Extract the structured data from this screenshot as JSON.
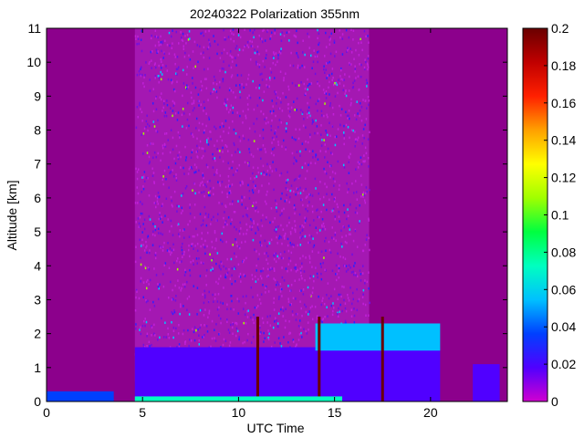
{
  "chart_data": {
    "type": "heatmap",
    "title": "20240322 Polarization 355nm",
    "xlabel": "UTC Time",
    "ylabel": "Altitude [km]",
    "xlim": [
      0,
      24
    ],
    "ylim": [
      0,
      11
    ],
    "x_ticks": [
      0,
      5,
      10,
      15,
      20
    ],
    "y_ticks": [
      0,
      1,
      2,
      3,
      4,
      5,
      6,
      7,
      8,
      9,
      10,
      11
    ],
    "colorbar": {
      "range": [
        0,
        0.2
      ],
      "ticks": [
        0,
        0.02,
        0.04,
        0.06,
        0.08,
        0.1,
        0.12,
        0.14,
        0.16,
        0.18,
        0.2
      ],
      "colormap": [
        "#d000d0",
        "#5000ff",
        "#0040ff",
        "#00c0ff",
        "#00ffc0",
        "#00ff40",
        "#a0ff00",
        "#ffff00",
        "#ffa000",
        "#ff2000",
        "#c00000",
        "#6a0000"
      ],
      "position": "right"
    },
    "background_color": "#8c008c",
    "grid": false,
    "features": [
      {
        "name": "noisy high-altitude signal",
        "x_range": [
          4.6,
          16.8
        ],
        "alt_range": [
          0.6,
          11
        ],
        "value": 0.02
      },
      {
        "name": "aerosol layer",
        "x_range": [
          4.6,
          20.5
        ],
        "alt_range": [
          0,
          1.6
        ],
        "value": 0.01
      },
      {
        "name": "layer top",
        "x_range": [
          14,
          20.5
        ],
        "alt_range": [
          1.5,
          2.3
        ],
        "value": 0.06
      },
      {
        "name": "depolarizing columns",
        "x": [
          11,
          14.2,
          17.5
        ],
        "alt_range": [
          0,
          2.5
        ],
        "value": 0.2
      },
      {
        "name": "late small patch",
        "x_range": [
          22.2,
          23.6
        ],
        "alt_range": [
          0,
          1.1
        ],
        "value": 0.01
      },
      {
        "name": "early surface traces",
        "x_range": [
          0,
          3.5
        ],
        "alt_range": [
          0,
          0.3
        ],
        "value": 0.04
      },
      {
        "name": "near-surface band",
        "x_range": [
          4.6,
          15.4
        ],
        "alt_range": [
          0,
          0.15
        ],
        "value": 0.08
      }
    ]
  }
}
